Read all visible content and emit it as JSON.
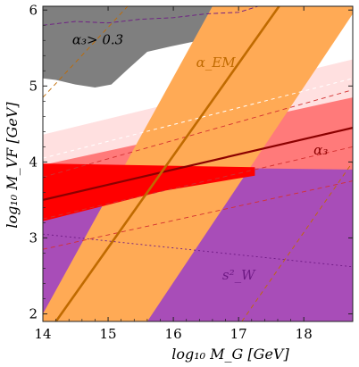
{
  "chart_data": {
    "type": "area",
    "xlabel": "log₁₀ M_G [GeV]",
    "ylabel": "log₁₀ M_VF [GeV]",
    "xlim": [
      14,
      18.75
    ],
    "ylim": [
      1.9,
      6.05
    ],
    "x_ticks": [
      14,
      15,
      16,
      17,
      18
    ],
    "y_ticks": [
      2,
      3,
      4,
      5,
      6
    ],
    "grid": false,
    "annotations": [
      {
        "text": "α₃> 0.3",
        "x": 14.45,
        "y": 5.55,
        "color": "#000000"
      },
      {
        "text": "α_EM",
        "x": 16.35,
        "y": 5.25,
        "color": "#c06a00"
      },
      {
        "text": "α₃",
        "x": 18.15,
        "y": 4.1,
        "color": "#8b0000"
      },
      {
        "text": "s²_W",
        "x": 16.75,
        "y": 2.45,
        "color": "#6e1a84"
      }
    ],
    "regions": [
      {
        "name": "excluded-alpha3",
        "color": "#7f7f7f",
        "points": [
          [
            14.0,
            6.05
          ],
          [
            18.75,
            6.05
          ],
          [
            18.75,
            5.95
          ],
          [
            18.0,
            5.93
          ],
          [
            17.0,
            5.78
          ],
          [
            16.4,
            5.6
          ],
          [
            15.95,
            5.52
          ],
          [
            15.6,
            5.45
          ],
          [
            15.3,
            5.22
          ],
          [
            15.05,
            5.02
          ],
          [
            14.8,
            4.98
          ],
          [
            14.5,
            5.02
          ],
          [
            14.2,
            5.08
          ],
          [
            14.0,
            5.1
          ]
        ]
      },
      {
        "name": "pink-light-band",
        "color": "#ffe0e0",
        "points": [
          [
            14.0,
            4.36
          ],
          [
            18.75,
            5.35
          ],
          [
            18.75,
            4.0
          ],
          [
            14.0,
            3.0
          ]
        ]
      },
      {
        "name": "alpha3-band",
        "color": "#ff7a7a",
        "points": [
          [
            14.0,
            3.96
          ],
          [
            18.75,
            4.85
          ],
          [
            18.75,
            3.8
          ],
          [
            14.0,
            3.26
          ]
        ]
      },
      {
        "name": "sw2-purple",
        "color": "#a84db8",
        "points": [
          [
            14.0,
            3.95
          ],
          [
            14.0,
            1.9
          ],
          [
            18.75,
            1.9
          ],
          [
            18.75,
            3.9
          ]
        ]
      },
      {
        "name": "alpha-em-band",
        "color": "#ffaa55",
        "points": [
          [
            14.0,
            1.9
          ],
          [
            14.0,
            2.0
          ],
          [
            16.6,
            6.05
          ],
          [
            18.75,
            6.05
          ],
          [
            18.75,
            5.95
          ],
          [
            15.6,
            1.9
          ]
        ]
      },
      {
        "name": "overlap-region",
        "color": "#ff0000",
        "points": [
          [
            14.0,
            3.98
          ],
          [
            17.25,
            3.93
          ],
          [
            17.25,
            3.82
          ],
          [
            15.85,
            3.62
          ],
          [
            14.6,
            3.35
          ],
          [
            14.0,
            3.22
          ]
        ]
      }
    ],
    "series": [
      {
        "name": "α₃",
        "color": "#8b0000",
        "width": 2.2,
        "dash": "",
        "x": [
          14.0,
          18.75
        ],
        "y": [
          3.5,
          4.45
        ]
      },
      {
        "name": "α_EM",
        "color": "#c06a00",
        "width": 2.6,
        "dash": "",
        "x": [
          14.2,
          17.62
        ],
        "y": [
          1.9,
          6.05
        ]
      }
    ],
    "dashed_lines": [
      {
        "color": "#ffffff",
        "width": 1.0,
        "dash": "4,4",
        "x": [
          14.0,
          18.75
        ],
        "y": [
          4.05,
          5.1
        ]
      },
      {
        "color": "#d33030",
        "width": 0.9,
        "dash": "5,4",
        "x": [
          14.0,
          18.75
        ],
        "y": [
          3.8,
          4.95
        ]
      },
      {
        "color": "#d33030",
        "width": 0.9,
        "dash": "5,4",
        "x": [
          14.0,
          18.75
        ],
        "y": [
          3.25,
          4.2
        ]
      },
      {
        "color": "#d33030",
        "width": 0.9,
        "dash": "5,4",
        "x": [
          14.0,
          18.75
        ],
        "y": [
          2.85,
          3.75
        ]
      },
      {
        "color": "#c06a00",
        "width": 0.9,
        "dash": "5,4",
        "x": [
          14.0,
          15.3
        ],
        "y": [
          4.85,
          6.05
        ]
      },
      {
        "color": "#c06a00",
        "width": 0.9,
        "dash": "5,4",
        "x": [
          17.05,
          18.75
        ],
        "y": [
          1.9,
          4.0
        ]
      },
      {
        "color": "#6e1a84",
        "width": 0.9,
        "dash": "2,3",
        "x": [
          14.0,
          18.75
        ],
        "y": [
          3.05,
          2.62
        ]
      },
      {
        "color": "#6e1a84",
        "width": 0.9,
        "dash": "5,3",
        "x": [
          14.0,
          14.5,
          15.0,
          15.5,
          16.0,
          16.5,
          17.0,
          17.3
        ],
        "y": [
          5.8,
          5.85,
          5.83,
          5.88,
          5.9,
          5.95,
          5.97,
          6.05
        ]
      }
    ]
  }
}
